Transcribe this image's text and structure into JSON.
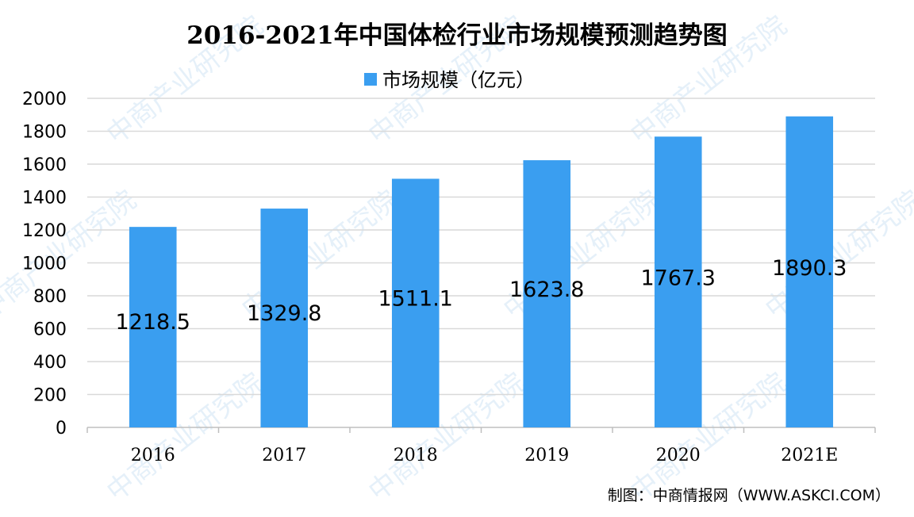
{
  "chart_data": {
    "type": "bar",
    "title": "2016-2021年中国体检行业市场规模预测趋势图",
    "xlabel": "",
    "ylabel": "",
    "categories": [
      "2016",
      "2017",
      "2018",
      "2019",
      "2020",
      "2021E"
    ],
    "series": [
      {
        "name": "市场规模（亿元）",
        "values": [
          1218.5,
          1329.8,
          1511.1,
          1623.8,
          1767.3,
          1890.3
        ]
      }
    ],
    "data_labels": [
      "1218.5",
      "1329.8",
      "1511.1",
      "1623.8",
      "1767.3",
      "1890.3"
    ],
    "ylim": [
      0,
      2000
    ],
    "yticks": [
      0,
      200,
      400,
      600,
      800,
      1000,
      1200,
      1400,
      1600,
      1800,
      2000
    ],
    "grid": true,
    "legend_position": "top-center",
    "bar_color": "#3a9ef0",
    "grid_color": "#d9d9d9"
  },
  "source": "制图：中商情报网（WWW.ASKCI.COM）",
  "watermark": "中商产业研究院"
}
